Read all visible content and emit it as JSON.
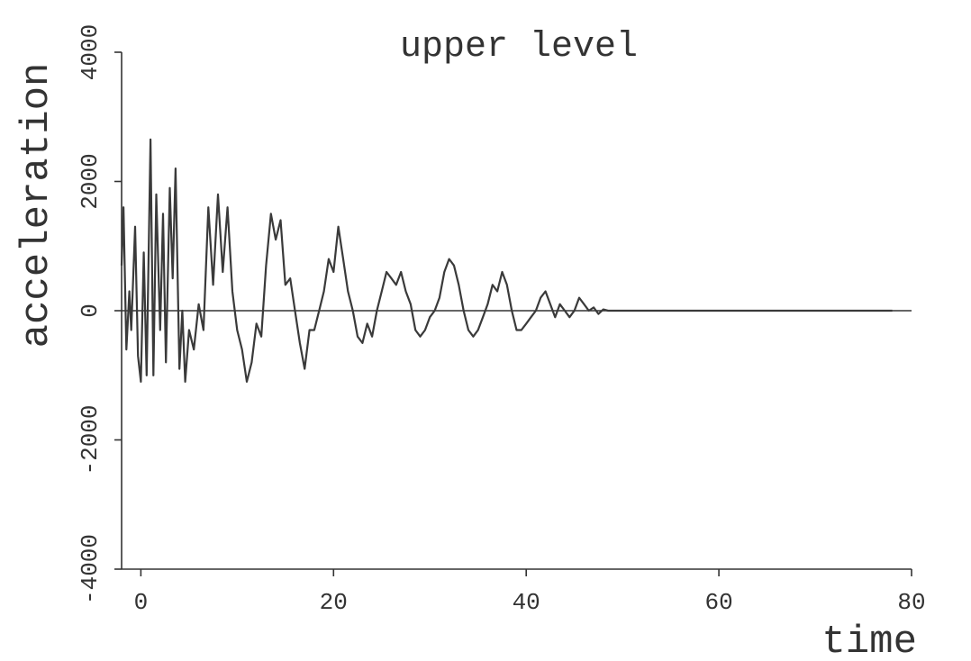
{
  "chart_data": {
    "type": "line",
    "title": "upper level",
    "xlabel": "time",
    "ylabel": "acceleration",
    "xlim": [
      -2,
      80
    ],
    "ylim": [
      -4000,
      4000
    ],
    "x_ticks": [
      0,
      20,
      40,
      60,
      80
    ],
    "y_ticks": [
      -4000,
      -2000,
      0,
      2000,
      4000
    ],
    "y_tick_labels": [
      "-4000",
      "-2000",
      "0",
      "2000",
      "4000"
    ],
    "grid": false,
    "zero_line": true,
    "series": [
      {
        "x": [
          -2,
          -1.8,
          -1.5,
          -1.2,
          -1.0,
          -0.6,
          -0.3,
          0,
          0.3,
          0.6,
          1.0,
          1.3,
          1.6,
          2.0,
          2.3,
          2.6,
          3.0,
          3.3,
          3.6,
          4.0,
          4.3,
          4.6,
          5.0,
          5.5,
          6.0,
          6.5,
          7.0,
          7.5,
          8.0,
          8.5,
          9.0,
          9.5,
          10.0,
          10.5,
          11.0,
          11.5,
          12.0,
          12.5,
          13.0,
          13.5,
          14.0,
          14.5,
          15.0,
          15.5,
          16.0,
          16.5,
          17.0,
          17.5,
          18.0,
          18.5,
          19.0,
          19.5,
          20.0,
          20.5,
          21.0,
          21.5,
          22.0,
          22.5,
          23.0,
          23.5,
          24.0,
          24.5,
          25.0,
          25.5,
          26.0,
          26.5,
          27.0,
          27.5,
          28.0,
          28.5,
          29.0,
          29.5,
          30.0,
          30.5,
          31.0,
          31.5,
          32.0,
          32.5,
          33.0,
          33.5,
          34.0,
          34.5,
          35.0,
          35.5,
          36.0,
          36.5,
          37.0,
          37.5,
          38.0,
          38.5,
          39.0,
          39.5,
          40.0,
          40.5,
          41.0,
          41.5,
          42.0,
          42.5,
          43.0,
          43.5,
          44.0,
          44.5,
          45.0,
          45.5,
          46.0,
          46.5,
          47.0,
          47.5,
          48.0,
          48.5,
          49.0,
          50,
          60,
          70,
          78
        ],
        "y": [
          700,
          1600,
          -600,
          300,
          -300,
          1300,
          -700,
          -1100,
          900,
          -1000,
          2650,
          -1000,
          1800,
          -300,
          1500,
          -800,
          1900,
          500,
          2200,
          -900,
          0,
          -1100,
          -300,
          -600,
          100,
          -300,
          1600,
          400,
          1800,
          600,
          1600,
          300,
          -300,
          -600,
          -1100,
          -800,
          -200,
          -400,
          700,
          1500,
          1100,
          1400,
          400,
          500,
          0,
          -500,
          -900,
          -300,
          -300,
          0,
          300,
          800,
          600,
          1300,
          800,
          300,
          0,
          -400,
          -500,
          -200,
          -400,
          0,
          300,
          600,
          500,
          400,
          600,
          300,
          100,
          -300,
          -400,
          -300,
          -100,
          0,
          200,
          600,
          800,
          700,
          400,
          0,
          -300,
          -400,
          -300,
          -100,
          100,
          400,
          300,
          600,
          400,
          0,
          -300,
          -300,
          -200,
          -100,
          0,
          200,
          300,
          100,
          -100,
          100,
          0,
          -100,
          0,
          200,
          100,
          0,
          50,
          -50,
          20,
          0,
          0,
          0,
          0,
          0,
          0
        ]
      }
    ]
  }
}
